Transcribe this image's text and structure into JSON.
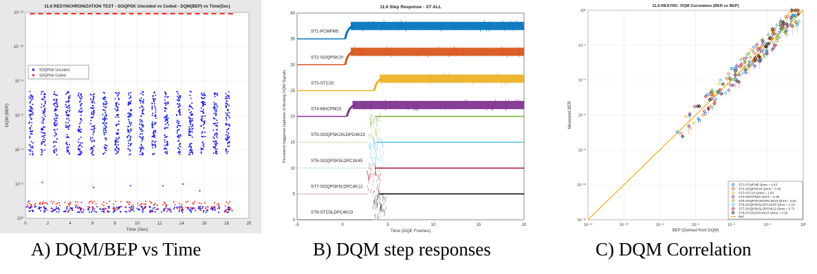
{
  "captions": {
    "a": "A) DQM/BEP vs Time",
    "b": "B) DQM step responses",
    "c": "C) DQM Correlation"
  },
  "chart_data": [
    {
      "id": "a",
      "type": "scatter",
      "title": "11.6 RESYNCHRONIZATION TEST - SOQPSK Uncoded vs Coded - DQM(BEP) vs Time(Sec)",
      "xlabel": "Time (Sec)",
      "ylabel": "DQM (BEP)",
      "xlim": [
        0,
        20
      ],
      "xticks": [
        "0",
        "2",
        "4",
        "6",
        "8",
        "10",
        "12",
        "14",
        "16",
        "18",
        "20"
      ],
      "yscale": "log",
      "ylim_exp": [
        0,
        -12
      ],
      "yticks": [
        "10⁰",
        "10⁻²",
        "10⁻⁴",
        "10⁻⁶",
        "10⁻⁸",
        "10⁻¹⁰",
        "10⁻¹²"
      ],
      "grid": true,
      "background": "#e8e8e8",
      "series": [
        {
          "name": "SOQPSK Uncoded",
          "color": "#1a1aff",
          "marker": "square"
        },
        {
          "name": "SOQPSK Coded",
          "color": "#ff2020",
          "marker": "circle"
        }
      ],
      "reference_line": {
        "value_exp": -12,
        "color": "#ff2020",
        "style": "dashed"
      },
      "burst_times": [
        0.5,
        1.6,
        2.7,
        3.8,
        4.9,
        6.0,
        7.1,
        8.2,
        9.3,
        10.4,
        11.5,
        12.6,
        13.7,
        14.8,
        15.9,
        17.0,
        18.1
      ],
      "legend_position": "upper-left"
    },
    {
      "id": "b",
      "type": "line",
      "title": "11.6 Step Response - ST ALL",
      "xlabel": "Time (DQE Frames)",
      "ylabel": "Persistent triggered captures of Analog DQM Signals",
      "xlim": [
        -5,
        20
      ],
      "xticks": [
        "-5",
        "0",
        "5",
        "10",
        "15",
        "20"
      ],
      "ylim": [
        0,
        40
      ],
      "yticks": [
        "0",
        "5",
        "10",
        "15",
        "20",
        "25",
        "30",
        "35",
        "40"
      ],
      "series": [
        {
          "name": "ST1-PCMFM5",
          "color": "#0072bd",
          "low": 35,
          "high": 37.5,
          "step_x": 0.3
        },
        {
          "name": "ST2-SOQPSK20",
          "color": "#d95319",
          "low": 30,
          "high": 32.5,
          "step_x": 0.3
        },
        {
          "name": "ST3-STC10",
          "color": "#edb120",
          "low": 25,
          "high": 27.3,
          "step_x": 3.5
        },
        {
          "name": "ST4-MHCPM15",
          "color": "#7e2f8e",
          "low": 20,
          "high": 22.2,
          "step_x": 0.5
        },
        {
          "name": "ST5-SOQPSK20LDPC4K23",
          "color": "#77ac30",
          "low": 15,
          "high": 20,
          "step_x": 2.8
        },
        {
          "name": "ST6-SOQPSK5LDPC1K45",
          "color": "#4dbeee",
          "low": 10,
          "high": 15,
          "step_x": 3.0
        },
        {
          "name": "ST7-SOQPSK5LDPC4K12",
          "color": "#a2142f",
          "low": 5,
          "high": 10,
          "step_x": 2.8
        },
        {
          "name": "ST8-STC5LDPC4K23",
          "color": "#000000",
          "low": 0,
          "high": 5,
          "step_x": 3.3
        }
      ]
    },
    {
      "id": "c",
      "type": "scatter",
      "title": "11.6-RESYNC- DQM Correlation (BER vs BEP)",
      "xlabel": "BEP (Derived from DQM)",
      "ylabel": "Measured BER",
      "xscale": "log",
      "yscale": "log",
      "xlim_exp": [
        -12,
        0
      ],
      "ylim_exp": [
        -12,
        0
      ],
      "xticks": [
        "10⁻¹²",
        "10⁻¹⁰",
        "10⁻⁸",
        "10⁻⁶",
        "10⁻⁴",
        "10⁻²",
        "10⁰"
      ],
      "yticks": [
        "10⁻¹²",
        "10⁻¹⁰",
        "10⁻⁸",
        "10⁻⁶",
        "10⁻⁴",
        "10⁻²",
        "10⁰"
      ],
      "grid": true,
      "legend_position": "lower-right",
      "series": [
        {
          "name": "ST1-PCMFM5  Qrms = 0.43",
          "color": "#0072bd",
          "marker": "circle"
        },
        {
          "name": "ST2-SOQPSK20  Qrms = 0.36",
          "color": "#d95319",
          "marker": "circle"
        },
        {
          "name": "ST3-STC10  Qrms = 1.03",
          "color": "#edb120",
          "marker": "circle"
        },
        {
          "name": "ST4-MHCPM15  Qrms = 0.35",
          "color": "#7e2f8e",
          "marker": "diamond"
        },
        {
          "name": "ST5-SOQPSK20LDPC4K23  Qrms = 0.81",
          "color": "#77ac30",
          "marker": "diamond"
        },
        {
          "name": "ST6-SOQPSK5LDPC1K45  Qrms = 1.10",
          "color": "#4dbeee",
          "marker": "diamond"
        },
        {
          "name": "ST7-SOQPSK5LDPC4K12  Qrms = 0.71",
          "color": "#a2142f",
          "marker": "diamond"
        },
        {
          "name": "ST8-STC5LDPC4K23  Qrms = 0.26",
          "color": "#000000",
          "marker": "diamond"
        },
        {
          "name": "Ref",
          "color": "#edb120",
          "marker": "line"
        }
      ]
    }
  ]
}
